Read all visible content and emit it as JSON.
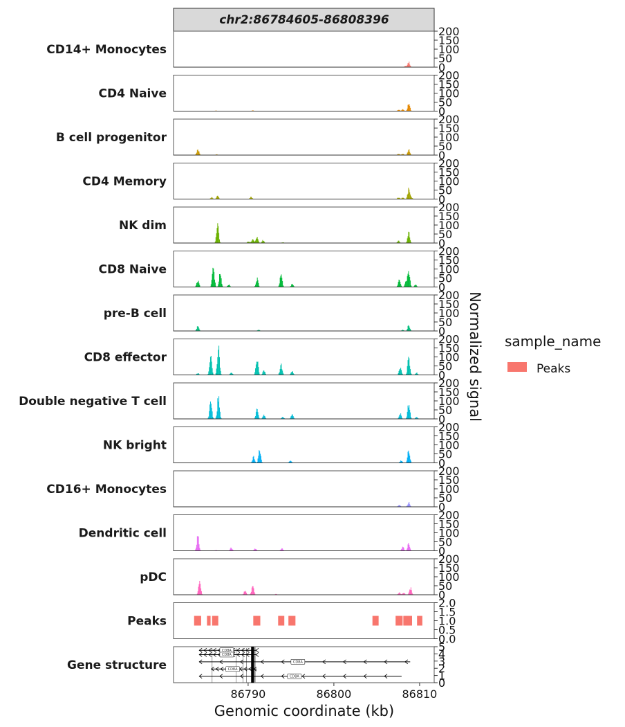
{
  "chart_data": {
    "type": "area",
    "title": "chr2:86784605-86808396",
    "xlabel": "Genomic coordinate (kb)",
    "ylabel": "Normalized signal",
    "xlim": [
      86781.3,
      86811.7
    ],
    "x_ticks": [
      86790,
      86800,
      86810
    ],
    "x_tick_labels": [
      "86790",
      "86800",
      "86810"
    ],
    "signal_ylim": [
      0,
      200
    ],
    "signal_y_ticks": [
      0,
      50,
      100,
      150,
      200
    ],
    "signal_y_tick_labels": [
      "0",
      "50",
      "100",
      "150",
      "200"
    ],
    "legend": {
      "title": "sample_name",
      "position": "right",
      "entries": [
        {
          "label": "Peaks",
          "color": "#F8766D"
        }
      ]
    },
    "tracks": [
      {
        "name": "CD14+ Monocytes",
        "color": "#F8766D",
        "peaks": [
          [
            86808.7,
            35
          ],
          [
            86808.3,
            8
          ]
        ]
      },
      {
        "name": "CD4 Naive",
        "color": "#E58700",
        "peaks": [
          [
            86786.2,
            4
          ],
          [
            86790.5,
            5
          ],
          [
            86807.5,
            10
          ],
          [
            86808.0,
            12
          ],
          [
            86808.7,
            50
          ]
        ]
      },
      {
        "name": "B cell progenitor",
        "color": "#C99800",
        "peaks": [
          [
            86784.1,
            40
          ],
          [
            86786.3,
            5
          ],
          [
            86807.5,
            8
          ],
          [
            86808.0,
            8
          ],
          [
            86808.7,
            38
          ]
        ]
      },
      {
        "name": "CD4 Memory",
        "color": "#A3A500",
        "peaks": [
          [
            86785.7,
            12
          ],
          [
            86786.4,
            20
          ],
          [
            86790.3,
            15
          ],
          [
            86807.5,
            10
          ],
          [
            86808.0,
            10
          ],
          [
            86808.7,
            65
          ],
          [
            86809.0,
            10
          ]
        ]
      },
      {
        "name": "NK dim",
        "color": "#6BB100",
        "peaks": [
          [
            86786.4,
            120
          ],
          [
            86790.0,
            12
          ],
          [
            86790.5,
            30
          ],
          [
            86791.0,
            45
          ],
          [
            86791.7,
            18
          ],
          [
            86794.0,
            5
          ],
          [
            86807.5,
            15
          ],
          [
            86808.7,
            70
          ]
        ]
      },
      {
        "name": "CD8 Naive",
        "color": "#00BA38",
        "peaks": [
          [
            86784.1,
            45
          ],
          [
            86785.9,
            150
          ],
          [
            86786.7,
            90
          ],
          [
            86787.7,
            15
          ],
          [
            86791.0,
            55
          ],
          [
            86793.8,
            80
          ],
          [
            86795.1,
            18
          ],
          [
            86807.6,
            45
          ],
          [
            86808.4,
            40
          ],
          [
            86808.7,
            115
          ],
          [
            86809.5,
            15
          ]
        ]
      },
      {
        "name": "pre-B cell",
        "color": "#00BF7D",
        "peaks": [
          [
            86784.1,
            35
          ],
          [
            86791.2,
            8
          ],
          [
            86808.0,
            8
          ],
          [
            86808.7,
            40
          ]
        ]
      },
      {
        "name": "CD8 effector",
        "color": "#00C0AF",
        "peaks": [
          [
            86784.1,
            12
          ],
          [
            86785.6,
            120
          ],
          [
            86786.5,
            195
          ],
          [
            86788.0,
            18
          ],
          [
            86791.0,
            115
          ],
          [
            86791.8,
            30
          ],
          [
            86793.8,
            70
          ],
          [
            86795.1,
            25
          ],
          [
            86807.7,
            50
          ],
          [
            86808.7,
            120
          ],
          [
            86809.6,
            15
          ]
        ]
      },
      {
        "name": "Double negative T cell",
        "color": "#00BCD8",
        "peaks": [
          [
            86785.6,
            115
          ],
          [
            86786.5,
            150
          ],
          [
            86791.0,
            60
          ],
          [
            86791.8,
            25
          ],
          [
            86794.0,
            12
          ],
          [
            86795.1,
            30
          ],
          [
            86807.7,
            35
          ],
          [
            86808.7,
            105
          ],
          [
            86809.6,
            12
          ]
        ]
      },
      {
        "name": "NK bright",
        "color": "#00B0F6",
        "peaks": [
          [
            86790.6,
            40
          ],
          [
            86791.3,
            85
          ],
          [
            86794.9,
            15
          ],
          [
            86807.8,
            15
          ],
          [
            86808.7,
            85
          ]
        ]
      },
      {
        "name": "CD16+ Monocytes",
        "color": "#9590FF",
        "peaks": [
          [
            86807.6,
            12
          ],
          [
            86808.7,
            30
          ]
        ]
      },
      {
        "name": "Dendritic cell",
        "color": "#E76BF3",
        "peaks": [
          [
            86784.1,
            100
          ],
          [
            86786.2,
            5
          ],
          [
            86788.0,
            20
          ],
          [
            86790.8,
            15
          ],
          [
            86793.9,
            15
          ],
          [
            86808.0,
            25
          ],
          [
            86808.7,
            50
          ]
        ]
      },
      {
        "name": "pDC",
        "color": "#FF62BC",
        "peaks": [
          [
            86784.3,
            90
          ],
          [
            86789.6,
            25
          ],
          [
            86790.5,
            55
          ],
          [
            86793.2,
            5
          ],
          [
            86807.6,
            15
          ],
          [
            86808.1,
            15
          ],
          [
            86808.9,
            45
          ]
        ]
      }
    ],
    "peaks_track": {
      "name": "Peaks",
      "color": "#F8766D",
      "ylim": [
        0,
        2
      ],
      "y_ticks": [
        0,
        0.5,
        1,
        1.5,
        2
      ],
      "y_tick_labels": [
        "0.0",
        "0.5",
        "1.0",
        "1.5",
        "2.0"
      ],
      "regions": [
        [
          86783.7,
          86784.6
        ],
        [
          86785.2,
          86785.7
        ],
        [
          86785.8,
          86786.6
        ],
        [
          86790.6,
          86791.5
        ],
        [
          86793.5,
          86794.3
        ],
        [
          86794.7,
          86795.6
        ],
        [
          86804.5,
          86805.3
        ],
        [
          86807.2,
          86808.1
        ],
        [
          86808.1,
          86809.2
        ],
        [
          86809.7,
          86810.4
        ]
      ]
    },
    "gene_track": {
      "name": "Gene structure",
      "ylim": [
        0,
        5
      ],
      "y_ticks": [
        0,
        1,
        2,
        3,
        4,
        5
      ],
      "y_tick_labels": [
        "0",
        "1",
        "2",
        "3",
        "4",
        "5"
      ],
      "transcripts": [
        {
          "gene": "CD8A",
          "row": 4.5,
          "start": 86784.3,
          "end": 86791.0,
          "label_at": 86787.5
        },
        {
          "gene": "CD8A",
          "row": 3.9,
          "start": 86784.3,
          "end": 86791.0,
          "label_at": 86787.5
        },
        {
          "gene": "CD8A",
          "row": 2.9,
          "start": 86784.3,
          "end": 86808.9,
          "label_at": 86795.8
        },
        {
          "gene": "CD8A",
          "row": 1.9,
          "start": 86785.7,
          "end": 86791.0,
          "label_at": 86788.2
        },
        {
          "gene": "CD8A",
          "row": 0.9,
          "start": 86784.3,
          "end": 86807.9,
          "label_at": 86795.4
        }
      ]
    }
  }
}
